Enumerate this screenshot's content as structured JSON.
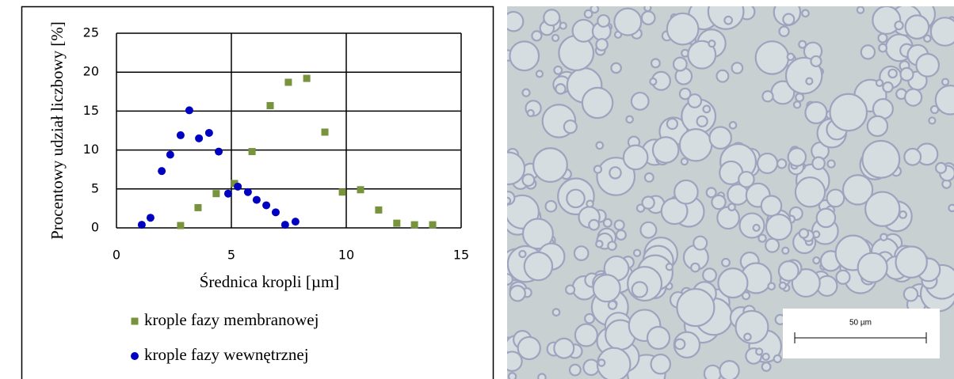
{
  "chart_data": {
    "type": "scatter",
    "x_label": "Średnica kropli [µm]",
    "y_label": "Procentowy udział liczbowy [%]",
    "xlim": [
      0,
      15
    ],
    "xticks": [
      0,
      5,
      10,
      15
    ],
    "ylim": [
      0,
      25
    ],
    "yticks": [
      0,
      5,
      10,
      15,
      20,
      25
    ],
    "grid": true,
    "series": [
      {
        "name": "krople fazy membranowej",
        "color": "#77933c",
        "marker": "square",
        "x": [
          2.79,
          3.55,
          4.34,
          5.14,
          5.9,
          6.69,
          7.48,
          8.28,
          9.07,
          9.83,
          10.62,
          11.41,
          12.2,
          12.97,
          13.76
        ],
        "values": [
          0.3,
          2.6,
          4.4,
          5.7,
          9.8,
          15.7,
          18.7,
          19.2,
          12.3,
          4.6,
          4.9,
          2.3,
          0.6,
          0.4,
          0.4
        ]
      },
      {
        "name": "krople fazy wewnętrznej",
        "color": "#0000c0",
        "marker": "circle",
        "x": [
          1.1,
          1.48,
          1.97,
          2.34,
          2.79,
          3.17,
          3.59,
          4.03,
          4.45,
          4.86,
          5.28,
          5.72,
          6.1,
          6.52,
          6.93,
          7.34,
          7.79
        ],
        "values": [
          0.4,
          1.3,
          7.3,
          9.4,
          11.9,
          15.1,
          11.5,
          12.2,
          9.8,
          4.4,
          5.3,
          4.6,
          3.6,
          2.9,
          2.0,
          0.4,
          0.8
        ]
      }
    ]
  },
  "micrograph": {
    "scale_label": "50 µm"
  }
}
